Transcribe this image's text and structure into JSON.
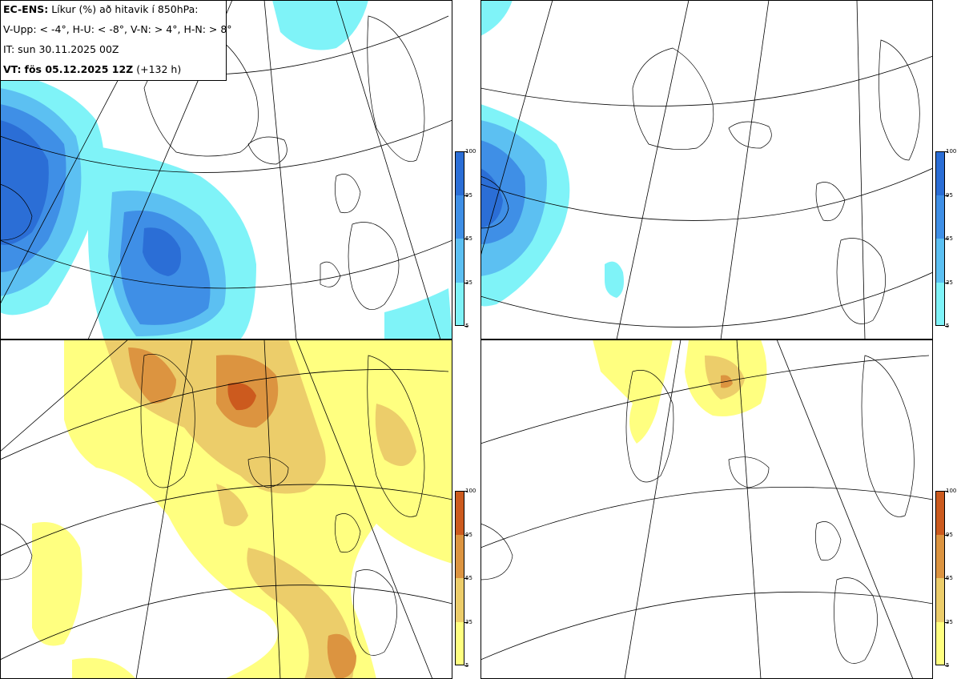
{
  "header": {
    "model": "EC-ENS:",
    "title_rest": "Líkur (%) að hitavik í 850hPa:",
    "thresholds": "V-Upp: < -4°, H-U: < -8°, V-N: > 4°, H-N: > 8°",
    "issue_time": "IT: sun 30.11.2025 00Z",
    "valid_label": "VT:",
    "valid_time": "fös 05.12.2025 12Z",
    "lead": "(+132 h)"
  },
  "panels": [
    {
      "id": "V-Upp",
      "scheme": "blue"
    },
    {
      "id": "H-U",
      "scheme": "blue"
    },
    {
      "id": "V-N",
      "scheme": "orange"
    },
    {
      "id": "H-N",
      "scheme": "orange"
    }
  ],
  "colorbar": {
    "ticks": [
      "100",
      "95",
      "65",
      "35",
      "5"
    ],
    "blue_colors": [
      "#2b6ed6",
      "#3f8fe6",
      "#5cc0f2",
      "#7ff3f8"
    ],
    "orange_colors": [
      "#cc5a1e",
      "#dc9440",
      "#eccd6a",
      "#ffff80"
    ]
  }
}
